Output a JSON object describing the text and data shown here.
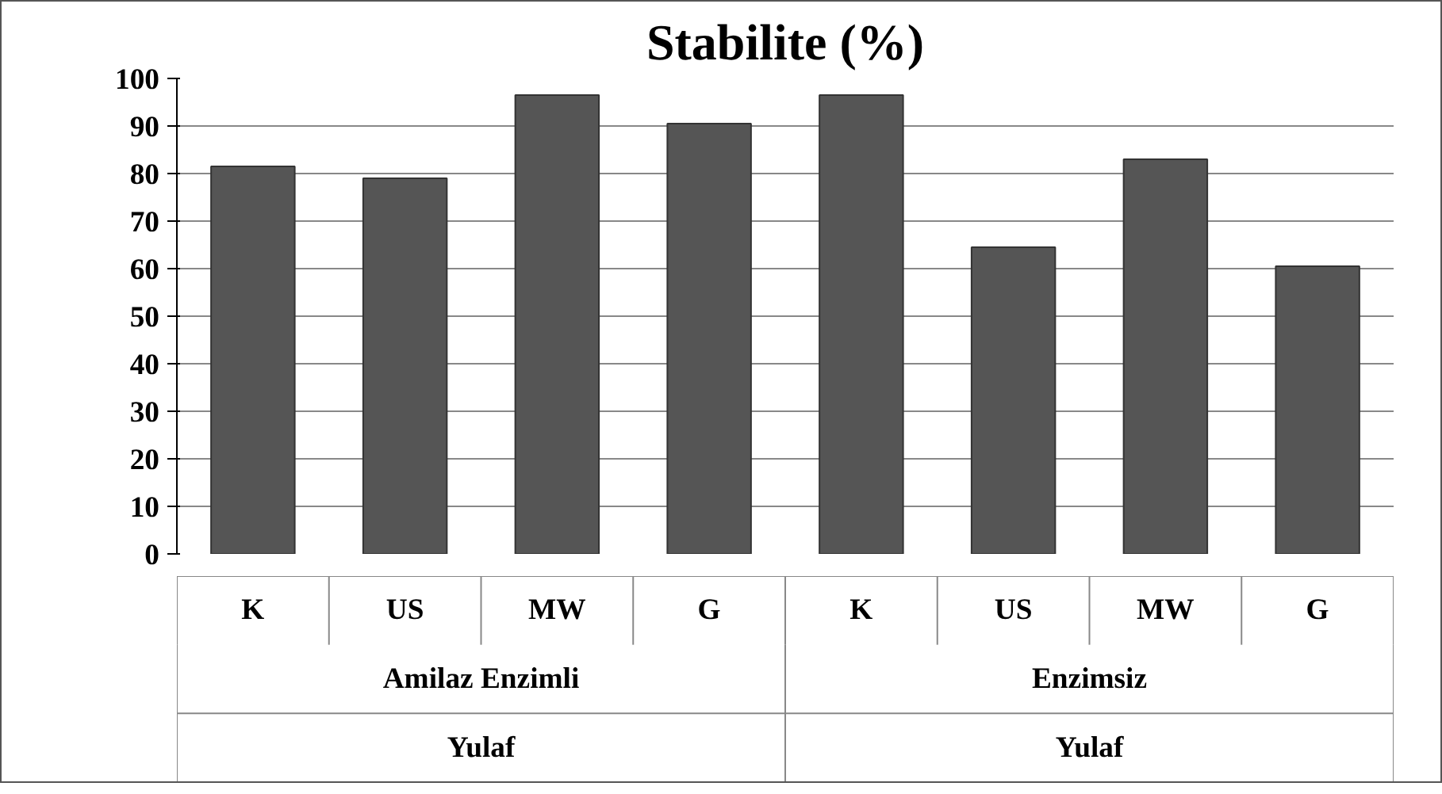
{
  "chart_data": {
    "type": "bar",
    "title": "Stabilite (%)",
    "categories": [
      "K",
      "US",
      "MW",
      "G",
      "K",
      "US",
      "MW",
      "G"
    ],
    "values": [
      81.5,
      79,
      96.5,
      90.5,
      96.5,
      64.5,
      83,
      60.5
    ],
    "color": "#555555",
    "ylim": [
      0,
      100
    ],
    "yticks": [
      0,
      10,
      20,
      30,
      40,
      50,
      60,
      70,
      80,
      90,
      100
    ],
    "grid": "y",
    "annotations": [
      "Amilaz Enzimli",
      "Enzimsiz",
      "Yulaf",
      "Yulaf"
    ]
  }
}
